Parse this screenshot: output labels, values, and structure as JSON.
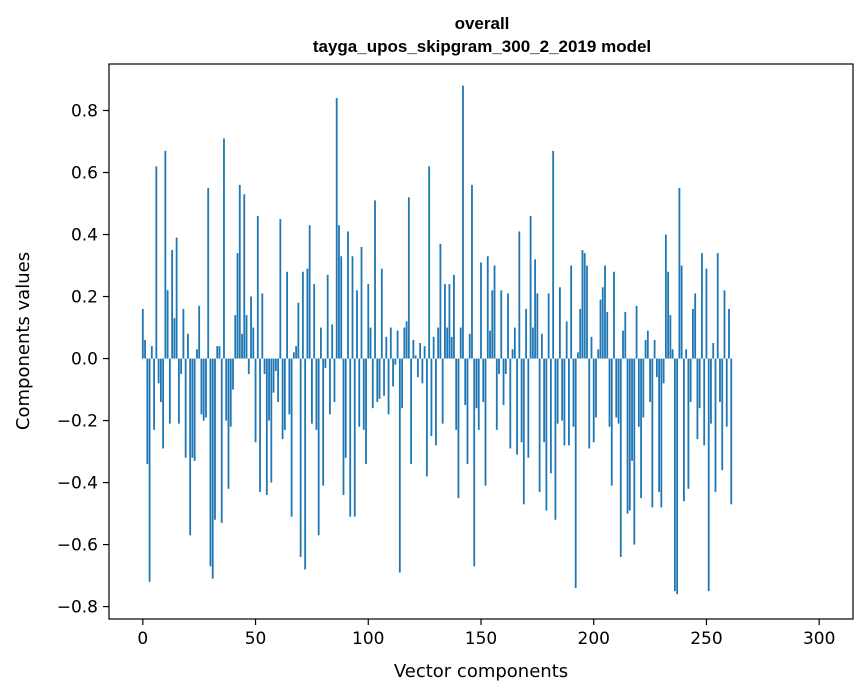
{
  "chart_data": {
    "type": "bar",
    "title_line1": "overall",
    "title_line2": "tayga_upos_skipgram_300_2_2019 model",
    "xlabel": "Vector components",
    "ylabel": "Components values",
    "xlim": [
      -15,
      315
    ],
    "ylim": [
      -0.84,
      0.95
    ],
    "xticks": [
      0,
      50,
      100,
      150,
      200,
      250,
      300
    ],
    "yticks": [
      -0.8,
      -0.6,
      -0.4,
      -0.2,
      0.0,
      0.2,
      0.4,
      0.6,
      0.8
    ],
    "xtick_labels": [
      "0",
      "50",
      "100",
      "150",
      "200",
      "250",
      "300"
    ],
    "ytick_labels": [
      "−0.8",
      "−0.6",
      "−0.4",
      "−0.2",
      "0.0",
      "0.2",
      "0.4",
      "0.6",
      "0.8"
    ],
    "color": "#1f77b4",
    "values": [
      0.16,
      0.06,
      -0.34,
      -0.72,
      0.04,
      -0.23,
      0.62,
      -0.08,
      -0.14,
      -0.29,
      0.67,
      0.22,
      -0.21,
      0.35,
      0.13,
      0.39,
      -0.21,
      -0.05,
      0.16,
      -0.32,
      0.08,
      -0.57,
      -0.32,
      -0.33,
      0.03,
      0.17,
      -0.18,
      -0.2,
      -0.19,
      0.55,
      -0.67,
      -0.71,
      -0.52,
      0.04,
      0.04,
      -0.53,
      0.71,
      -0.2,
      -0.42,
      -0.22,
      -0.1,
      0.14,
      0.34,
      0.56,
      0.08,
      0.53,
      0.14,
      -0.05,
      0.2,
      0.1,
      -0.27,
      0.46,
      -0.43,
      0.21,
      -0.05,
      -0.44,
      -0.2,
      -0.4,
      -0.11,
      -0.04,
      -0.14,
      0.45,
      -0.26,
      -0.23,
      0.28,
      -0.18,
      -0.51,
      0.02,
      0.04,
      0.18,
      -0.64,
      0.28,
      -0.68,
      0.29,
      0.43,
      -0.21,
      0.24,
      -0.23,
      -0.57,
      0.1,
      -0.41,
      -0.03,
      0.27,
      -0.18,
      0.11,
      -0.14,
      0.84,
      0.43,
      0.33,
      -0.44,
      -0.32,
      0.41,
      -0.51,
      0.33,
      -0.51,
      0.22,
      -0.22,
      0.36,
      -0.23,
      -0.34,
      0.24,
      0.1,
      -0.16,
      0.51,
      -0.14,
      -0.13,
      0.29,
      -0.12,
      0.07,
      -0.18,
      0.1,
      -0.09,
      -0.02,
      0.09,
      -0.69,
      -0.16,
      0.1,
      0.12,
      0.52,
      -0.34,
      0.06,
      0.01,
      -0.06,
      0.05,
      -0.08,
      0.04,
      -0.38,
      0.62,
      -0.25,
      0.07,
      -0.28,
      0.1,
      0.37,
      -0.21,
      0.24,
      0.1,
      0.24,
      0.07,
      0.27,
      -0.23,
      -0.45,
      0.1,
      0.88,
      -0.15,
      -0.34,
      0.08,
      0.56,
      -0.67,
      -0.16,
      -0.23,
      0.31,
      -0.14,
      -0.41,
      0.33,
      0.09,
      0.22,
      0.3,
      -0.23,
      -0.05,
      0.22,
      -0.15,
      -0.05,
      0.21,
      -0.29,
      0.03,
      0.1,
      -0.31,
      0.41,
      -0.27,
      -0.47,
      0.16,
      -0.32,
      0.46,
      0.1,
      0.32,
      0.21,
      -0.43,
      0.08,
      -0.27,
      -0.49,
      0.21,
      -0.37,
      0.67,
      -0.52,
      -0.21,
      0.23,
      -0.2,
      -0.28,
      0.12,
      -0.28,
      0.3,
      -0.22,
      -0.74,
      0.02,
      0.16,
      0.35,
      0.34,
      0.3,
      -0.29,
      0.07,
      -0.27,
      -0.19,
      0.03,
      0.19,
      0.23,
      0.3,
      0.15,
      -0.22,
      -0.41,
      0.28,
      -0.19,
      -0.21,
      -0.64,
      0.09,
      0.15,
      -0.5,
      -0.49,
      -0.33,
      -0.6,
      0.17,
      -0.22,
      -0.45,
      -0.19,
      0.06,
      0.09,
      -0.14,
      -0.48,
      0.06,
      -0.06,
      -0.43,
      -0.48,
      -0.08,
      0.4,
      0.28,
      0.14,
      0.03,
      -0.75,
      -0.76,
      0.55,
      0.3,
      -0.46,
      0.03,
      -0.42,
      -0.14,
      0.16,
      0.21,
      -0.26,
      -0.16,
      0.34,
      -0.28,
      0.29,
      -0.75,
      -0.21,
      0.05,
      -0.43,
      0.34,
      -0.14,
      -0.36,
      0.22,
      -0.22,
      0.16,
      -0.47
    ]
  }
}
